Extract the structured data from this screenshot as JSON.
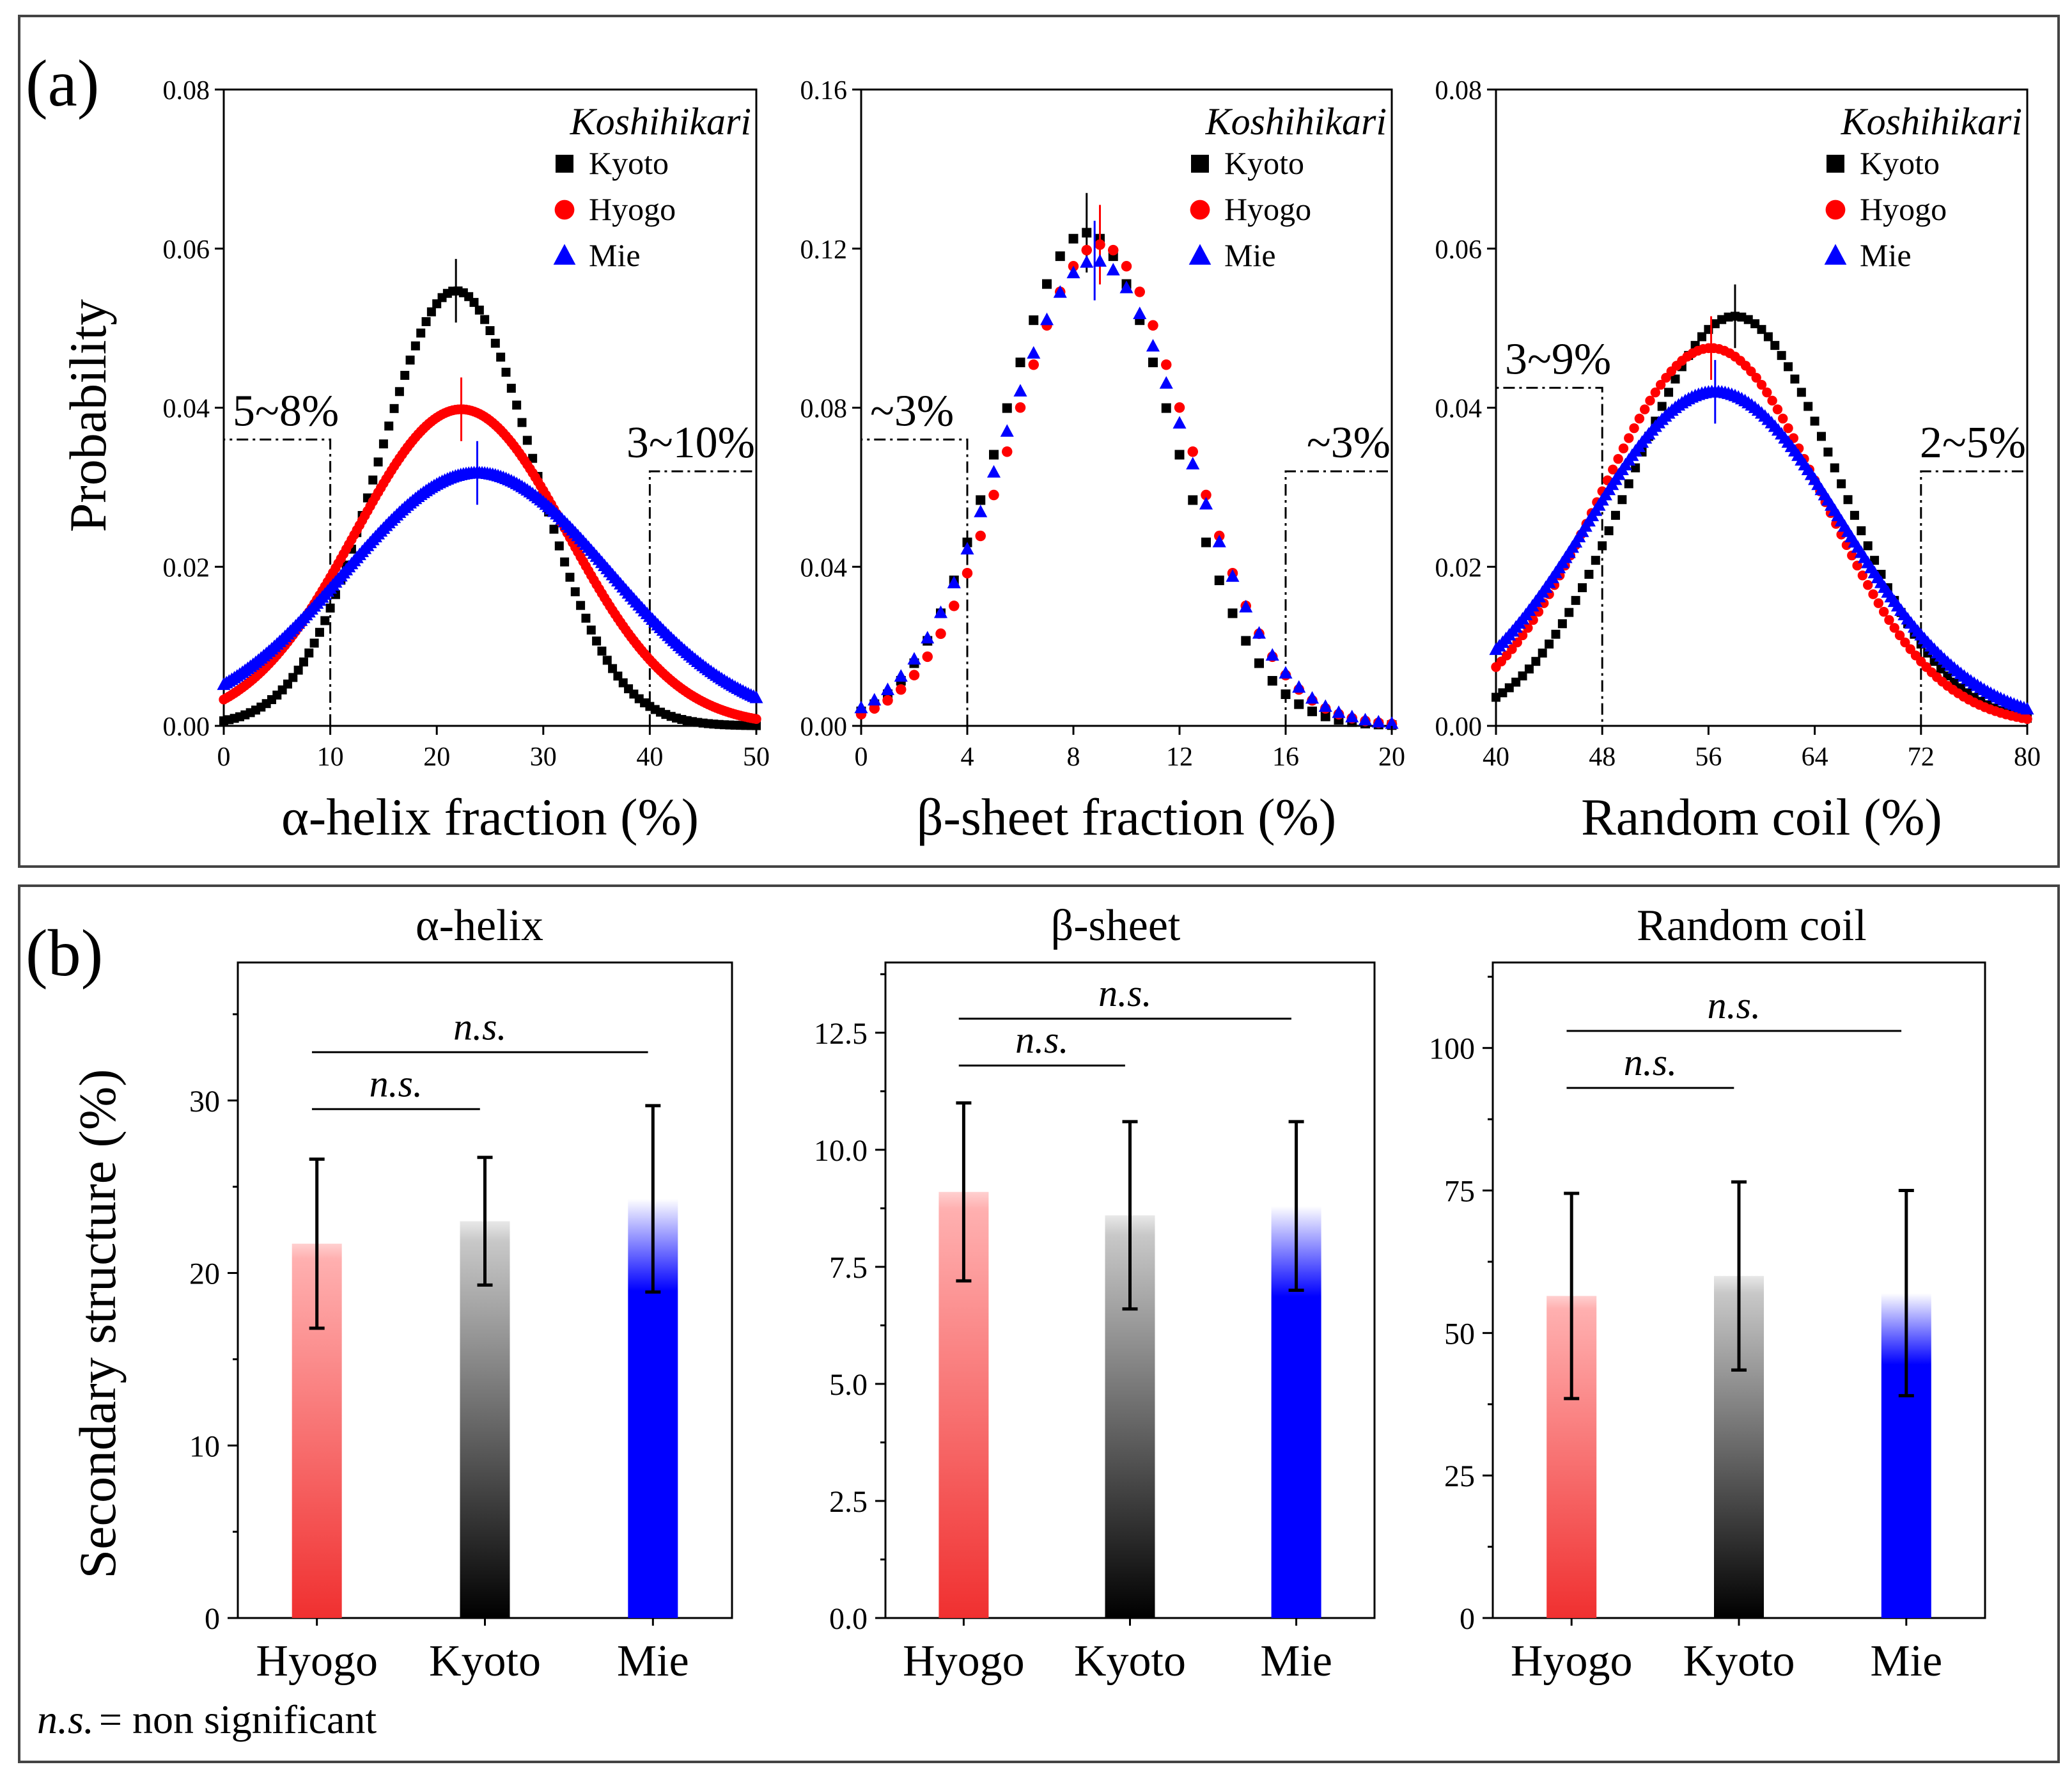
{
  "colors": {
    "Kyoto": "#000000",
    "Hyogo": "#ff0000",
    "Mie": "#0000ff"
  },
  "panel_a": {
    "label": "(a)",
    "ylabel": "Probability"
  },
  "panel_b": {
    "label": "(b)",
    "ylabel": "Secondary structure (%)",
    "footnote": {
      "ns": "n.s.",
      "text": "= non significant"
    }
  },
  "chart_data": [
    {
      "type": "scatter",
      "panel": "a",
      "title": "Koshihikari",
      "xlabel": "α-helix fraction (%)",
      "ylabel": "Probability",
      "xlim": [
        0,
        50
      ],
      "ylim": [
        0,
        0.08
      ],
      "xticks": [
        "0",
        "10",
        "20",
        "30",
        "40",
        "50"
      ],
      "yticks": [
        "0.00",
        "0.02",
        "0.04",
        "0.06",
        "0.08"
      ],
      "xtickvals": [
        0,
        10,
        20,
        30,
        40,
        50
      ],
      "ytickvals": [
        0,
        0.02,
        0.04,
        0.06,
        0.08
      ],
      "legend": [
        "Kyoto",
        "Hyogo",
        "Mie"
      ],
      "legend_markers": [
        "square",
        "circle",
        "triangle"
      ],
      "series": [
        {
          "name": "Kyoto",
          "marker": "square",
          "mean": 21.8,
          "sd": 7.3,
          "peak": 0.0547,
          "err": 0.004,
          "step": 0.5
        },
        {
          "name": "Hyogo",
          "marker": "circle",
          "mean": 22.3,
          "sd": 10.0,
          "peak": 0.0398,
          "err": 0.004,
          "step": 0.25
        },
        {
          "name": "Mie",
          "marker": "triangle",
          "mean": 23.8,
          "sd": 12.5,
          "peak": 0.0318,
          "err": 0.004,
          "step": 0.25
        }
      ],
      "regions": [
        {
          "label": "5~8%",
          "x0": 0,
          "x1": 10,
          "y": 0.036
        },
        {
          "label": "3~10%",
          "x0": 40,
          "x1": 50,
          "y": 0.032
        }
      ]
    },
    {
      "type": "scatter",
      "panel": "a",
      "title": "Koshihikari",
      "xlabel": "β-sheet fraction (%)",
      "ylabel": "Probability",
      "xlim": [
        0,
        20
      ],
      "ylim": [
        0,
        0.16
      ],
      "xticks": [
        "0",
        "4",
        "8",
        "12",
        "16",
        "20"
      ],
      "yticks": [
        "0.00",
        "0.04",
        "0.08",
        "0.12",
        "0.16"
      ],
      "xtickvals": [
        0,
        4,
        8,
        12,
        16,
        20
      ],
      "ytickvals": [
        0,
        0.04,
        0.08,
        0.12,
        0.16
      ],
      "legend": [
        "Kyoto",
        "Hyogo",
        "Mie"
      ],
      "legend_markers": [
        "square",
        "circle",
        "triangle"
      ],
      "series": [
        {
          "name": "Kyoto",
          "marker": "square",
          "mean": 8.5,
          "sd": 3.2,
          "peak": 0.124,
          "err": 0.01,
          "step": 0.5
        },
        {
          "name": "Hyogo",
          "marker": "circle",
          "mean": 9.0,
          "sd": 3.3,
          "peak": 0.121,
          "err": 0.01,
          "step": 0.5
        },
        {
          "name": "Mie",
          "marker": "triangle",
          "mean": 8.8,
          "sd": 3.45,
          "peak": 0.117,
          "err": 0.01,
          "step": 0.5
        }
      ],
      "regions": [
        {
          "label": "~3%",
          "x0": 0,
          "x1": 4,
          "y": 0.072
        },
        {
          "label": "~3%",
          "x0": 16,
          "x1": 20,
          "y": 0.064
        }
      ]
    },
    {
      "type": "scatter",
      "panel": "a",
      "title": "Koshihikari",
      "xlabel": "Random coil (%)",
      "ylabel": "Probability",
      "xlim": [
        40,
        80
      ],
      "ylim": [
        0,
        0.08
      ],
      "xticks": [
        "40",
        "48",
        "56",
        "64",
        "72",
        "80"
      ],
      "yticks": [
        "0.00",
        "0.02",
        "0.04",
        "0.06",
        "0.08"
      ],
      "xtickvals": [
        40,
        48,
        56,
        64,
        72,
        80
      ],
      "ytickvals": [
        0,
        0.02,
        0.04,
        0.06,
        0.08
      ],
      "legend": [
        "Kyoto",
        "Hyogo",
        "Mie"
      ],
      "legend_markers": [
        "square",
        "circle",
        "triangle"
      ],
      "series": [
        {
          "name": "Kyoto",
          "marker": "square",
          "mean": 58.0,
          "sd": 7.8,
          "peak": 0.0515,
          "err": 0.004,
          "step": 0.5
        },
        {
          "name": "Hyogo",
          "marker": "circle",
          "mean": 56.2,
          "sd": 8.4,
          "peak": 0.0475,
          "err": 0.004,
          "step": 0.4
        },
        {
          "name": "Mie",
          "marker": "triangle",
          "mean": 56.5,
          "sd": 9.6,
          "peak": 0.042,
          "err": 0.004,
          "step": 0.25
        }
      ],
      "regions": [
        {
          "label": "3~9%",
          "x0": 40,
          "x1": 48,
          "y": 0.0425
        },
        {
          "label": "2~5%",
          "x0": 72,
          "x1": 80,
          "y": 0.032
        }
      ]
    },
    {
      "type": "bar",
      "panel": "b",
      "title": "α-helix",
      "ylabel": "Secondary structure (%)",
      "categories": [
        "Hyogo",
        "Kyoto",
        "Mie"
      ],
      "values": [
        21.7,
        23.0,
        24.3
      ],
      "errors": [
        4.9,
        3.7,
        5.4
      ],
      "ylim": [
        0,
        38
      ],
      "yticks": [
        "0",
        "10",
        "20",
        "30"
      ],
      "ytickvals": [
        0,
        10,
        20,
        30
      ],
      "significance": [
        {
          "from": "Hyogo",
          "to": "Kyoto",
          "label": "n.s.",
          "y": 29.5
        },
        {
          "from": "Hyogo",
          "to": "Mie",
          "label": "n.s.",
          "y": 32.8
        }
      ]
    },
    {
      "type": "bar",
      "panel": "b",
      "title": "β-sheet",
      "ylabel": "Secondary structure (%)",
      "categories": [
        "Hyogo",
        "Kyoto",
        "Mie"
      ],
      "values": [
        9.1,
        8.6,
        8.8
      ],
      "errors": [
        1.9,
        2.0,
        1.8
      ],
      "ylim": [
        0,
        14
      ],
      "yticks": [
        "0.0",
        "2.5",
        "5.0",
        "7.5",
        "10.0",
        "12.5"
      ],
      "ytickvals": [
        0,
        2.5,
        5,
        7.5,
        10,
        12.5
      ],
      "significance": [
        {
          "from": "Hyogo",
          "to": "Kyoto",
          "label": "n.s.",
          "y": 11.8
        },
        {
          "from": "Hyogo",
          "to": "Mie",
          "label": "n.s.",
          "y": 12.8
        }
      ]
    },
    {
      "type": "bar",
      "panel": "b",
      "title": "Random coil",
      "ylabel": "Secondary structure (%)",
      "categories": [
        "Hyogo",
        "Kyoto",
        "Mie"
      ],
      "values": [
        56.5,
        60.0,
        57.0
      ],
      "errors": [
        18.0,
        16.5,
        18.0
      ],
      "ylim": [
        0,
        115
      ],
      "yticks": [
        "0",
        "25",
        "50",
        "75",
        "100"
      ],
      "ytickvals": [
        0,
        25,
        50,
        75,
        100
      ],
      "significance": [
        {
          "from": "Hyogo",
          "to": "Kyoto",
          "label": "n.s.",
          "y": 93
        },
        {
          "from": "Hyogo",
          "to": "Mie",
          "label": "n.s.",
          "y": 103
        }
      ]
    }
  ]
}
